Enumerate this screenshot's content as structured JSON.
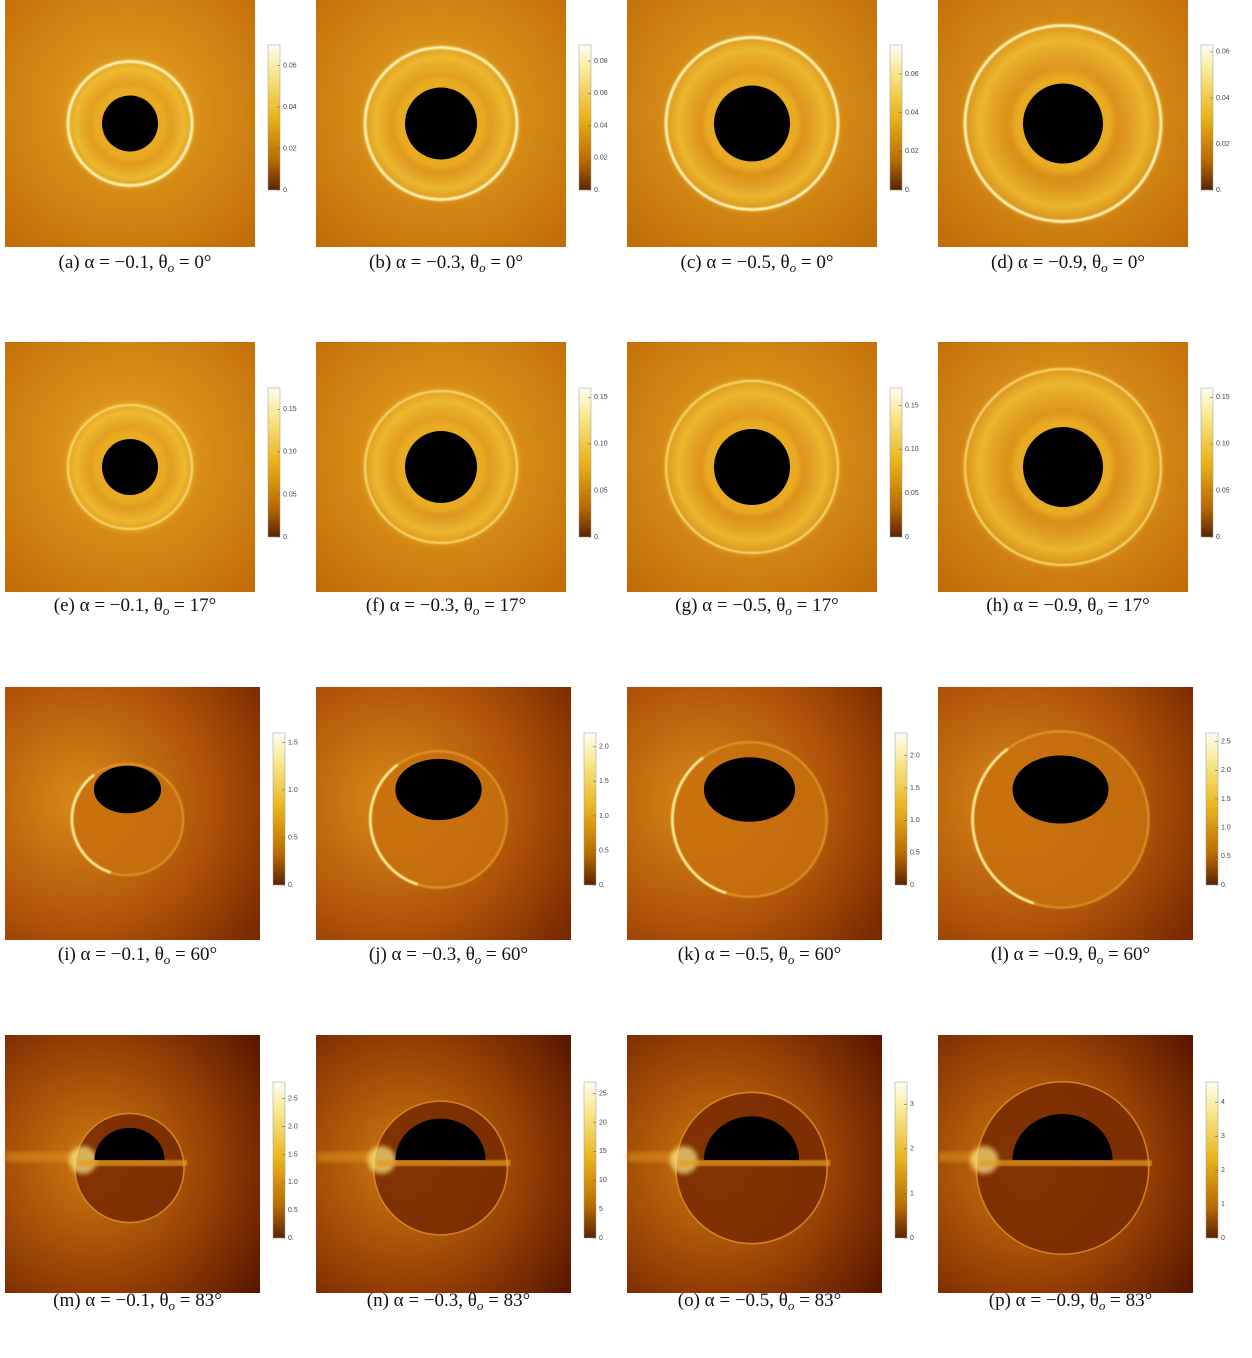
{
  "figure": {
    "panels": [
      {
        "caption": {
          "main": "(a) α = −0.1, θ",
          "sub": "o",
          "tail": " = 0°"
        },
        "colorbar": {
          "clim": [
            0,
            0.07
          ],
          "ticks": [
            {
              "value": 0,
              "label": "0."
            },
            0.02,
            0.04,
            0.06
          ]
        }
      },
      {
        "caption": {
          "main": "(b) α = −0.3, θ",
          "sub": "o",
          "tail": " = 0°"
        },
        "colorbar": {
          "clim": [
            0,
            0.09
          ],
          "ticks": [
            {
              "value": 0,
              "label": "0."
            },
            0.02,
            0.04,
            0.06,
            0.08
          ]
        }
      },
      {
        "caption": {
          "main": "(c) α = −0.5, θ",
          "sub": "o",
          "tail": " = 0°"
        },
        "colorbar": {
          "clim": [
            0,
            0.075
          ],
          "ticks": [
            {
              "value": 0,
              "label": "0."
            },
            0.02,
            0.04,
            0.06
          ]
        }
      },
      {
        "caption": {
          "main": "(d) α = −0.9, θ",
          "sub": "o",
          "tail": " = 0°"
        },
        "colorbar": {
          "clim": [
            0,
            0.063
          ],
          "ticks": [
            {
              "value": 0,
              "label": "0."
            },
            0.02,
            0.04,
            0.06
          ]
        }
      },
      {
        "caption": {
          "main": "(e) α = −0.1, θ",
          "sub": "o",
          "tail": " = 17°"
        },
        "colorbar": {
          "clim": [
            0,
            0.175
          ],
          "ticks": [
            {
              "value": 0,
              "label": "0."
            },
            0.05,
            {
              "value": 0.1,
              "label": "0.10"
            },
            0.15
          ]
        }
      },
      {
        "caption": {
          "main": "(f) α = −0.3, θ",
          "sub": "o",
          "tail": " = 17°"
        },
        "colorbar": {
          "clim": [
            0,
            0.16
          ],
          "ticks": [
            {
              "value": 0,
              "label": "0."
            },
            0.05,
            {
              "value": 0.1,
              "label": "0.10"
            },
            0.15
          ]
        }
      },
      {
        "caption": {
          "main": "(g) α = −0.5, θ",
          "sub": "o",
          "tail": " = 17°"
        },
        "colorbar": {
          "clim": [
            0,
            0.17
          ],
          "ticks": [
            {
              "value": 0,
              "label": "0."
            },
            0.05,
            {
              "value": 0.1,
              "label": "0.10"
            },
            0.15
          ]
        }
      },
      {
        "caption": {
          "main": "(h) α = −0.9, θ",
          "sub": "o",
          "tail": " = 17°"
        },
        "colorbar": {
          "clim": [
            0,
            0.16
          ],
          "ticks": [
            {
              "value": 0,
              "label": "0."
            },
            0.05,
            {
              "value": 0.1,
              "label": "0.10"
            },
            0.15
          ]
        }
      },
      {
        "caption": {
          "main": "(i) α = −0.1, θ",
          "sub": "o",
          "tail": " = 60°"
        },
        "colorbar": {
          "clim": [
            0,
            1.6
          ],
          "ticks": [
            {
              "value": 0,
              "label": "0."
            },
            0.5,
            {
              "value": 1,
              "label": "1.0"
            },
            1.5
          ]
        }
      },
      {
        "caption": {
          "main": "(j) α = −0.3, θ",
          "sub": "o",
          "tail": " = 60°"
        },
        "colorbar": {
          "clim": [
            0,
            2.2
          ],
          "ticks": [
            {
              "value": 0,
              "label": "0."
            },
            0.5,
            {
              "value": 1,
              "label": "1.0"
            },
            1.5,
            {
              "value": 2,
              "label": "2.0"
            }
          ]
        }
      },
      {
        "caption": {
          "main": "(k) α = −0.5, θ",
          "sub": "o",
          "tail": " = 60°"
        },
        "colorbar": {
          "clim": [
            0,
            2.35
          ],
          "ticks": [
            {
              "value": 0,
              "label": "0."
            },
            0.5,
            {
              "value": 1,
              "label": "1.0"
            },
            1.5,
            {
              "value": 2,
              "label": "2.0"
            }
          ]
        }
      },
      {
        "caption": {
          "main": "(l) α = −0.9, θ",
          "sub": "o",
          "tail": " = 60°"
        },
        "colorbar": {
          "clim": [
            0,
            2.65
          ],
          "ticks": [
            {
              "value": 0,
              "label": "0."
            },
            0.5,
            {
              "value": 1,
              "label": "1.0"
            },
            1.5,
            {
              "value": 2,
              "label": "2.0"
            },
            2.5
          ]
        }
      },
      {
        "caption": {
          "main": "(m) α = −0.1, θ",
          "sub": "o",
          "tail": " = 83°"
        },
        "colorbar": {
          "clim": [
            0,
            2.8
          ],
          "ticks": [
            {
              "value": 0,
              "label": "0."
            },
            0.5,
            {
              "value": 1,
              "label": "1.0"
            },
            1.5,
            {
              "value": 2,
              "label": "2.0"
            },
            2.5
          ]
        }
      },
      {
        "caption": {
          "main": "(n) α = −0.3, θ",
          "sub": "o",
          "tail": " = 83°"
        },
        "colorbar": {
          "clim": [
            0,
            27
          ],
          "ticks": [
            0,
            5,
            10,
            15,
            20,
            25
          ]
        }
      },
      {
        "caption": {
          "main": "(o) α = −0.5, θ",
          "sub": "o",
          "tail": " = 83°"
        },
        "colorbar": {
          "clim": [
            0,
            3.5
          ],
          "ticks": [
            0,
            1,
            2,
            3
          ]
        }
      },
      {
        "caption": {
          "main": "(p) α = −0.9, θ",
          "sub": "o",
          "tail": " = 83°"
        },
        "colorbar": {
          "clim": [
            0,
            4.6
          ],
          "ticks": [
            0,
            1,
            2,
            3,
            4
          ]
        }
      }
    ]
  }
}
